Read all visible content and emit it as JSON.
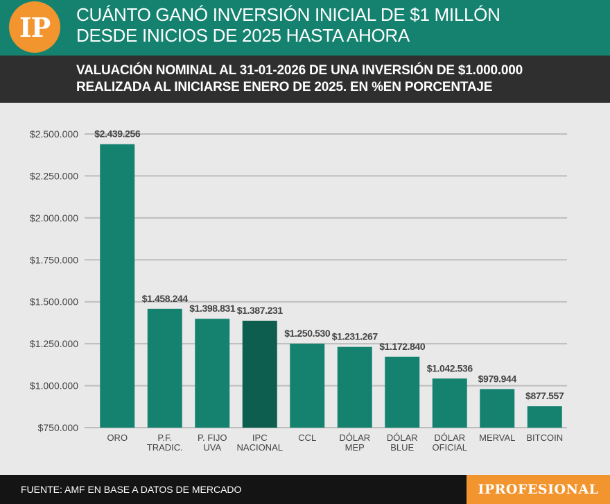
{
  "header": {
    "logo_text": "IP",
    "title_line1": "CUÁNTO GANÓ INVERSIÓN INICIAL DE $1 MILLÓN",
    "title_line2": "DESDE INICIOS DE 2025 HASTA AHORA"
  },
  "subheader": {
    "line1": "VALUACIÓN NOMINAL AL 31-01-2026 DE UNA INVERSIÓN DE $1.000.000",
    "line2": "REALIZADA AL INICIARSE ENERO DE 2025. EN %EN PORCENTAJE"
  },
  "footer": {
    "source": "FUENTE: AMF EN BASE A DATOS DE MERCADO",
    "brand": "IPROFESIONAL"
  },
  "colors": {
    "bar": "#15826f",
    "bar_highlight": "#0d5e4e",
    "header": "#15826f",
    "subheader": "#2f2f2f",
    "accent": "#f3952e",
    "grid": "#bdbdbd",
    "label_text": "#444444"
  },
  "chart_data": {
    "type": "bar",
    "title": "VALUACIÓN NOMINAL AL 31-01-2026 DE UNA INVERSIÓN DE $1.000.000",
    "xlabel": "",
    "ylabel": "",
    "ylim": [
      750000,
      2500000
    ],
    "yticks": [
      750000,
      1000000,
      1250000,
      1500000,
      1750000,
      2000000,
      2250000,
      2500000
    ],
    "ytick_labels": [
      "$750.000",
      "$1.000.000",
      "$1.250.000",
      "$1.500.000",
      "$1.750.000",
      "$2.000.000",
      "$2.250.000",
      "$2.500.000"
    ],
    "grid": true,
    "categories": [
      [
        "ORO"
      ],
      [
        "P.F.",
        "TRADIC."
      ],
      [
        "P. FIJO",
        "UVA"
      ],
      [
        "IPC",
        "NACIONAL"
      ],
      [
        "CCL"
      ],
      [
        "DÓLAR",
        "MEP"
      ],
      [
        "DÓLAR",
        "BLUE"
      ],
      [
        "DÓLAR",
        "OFICIAL"
      ],
      [
        "MERVAL"
      ],
      [
        "BITCOIN"
      ]
    ],
    "values": [
      2439256,
      1458244,
      1398831,
      1387231,
      1250530,
      1231267,
      1172840,
      1042536,
      979944,
      877557
    ],
    "value_labels": [
      "$2.439.256",
      "$1.458.244",
      "$1.398.831",
      "$1.387.231",
      "$1.250.530",
      "$1.231.267",
      "$1.172.840",
      "$1.042.536",
      "$979.944",
      "$877.557"
    ],
    "highlight_index": 3
  }
}
